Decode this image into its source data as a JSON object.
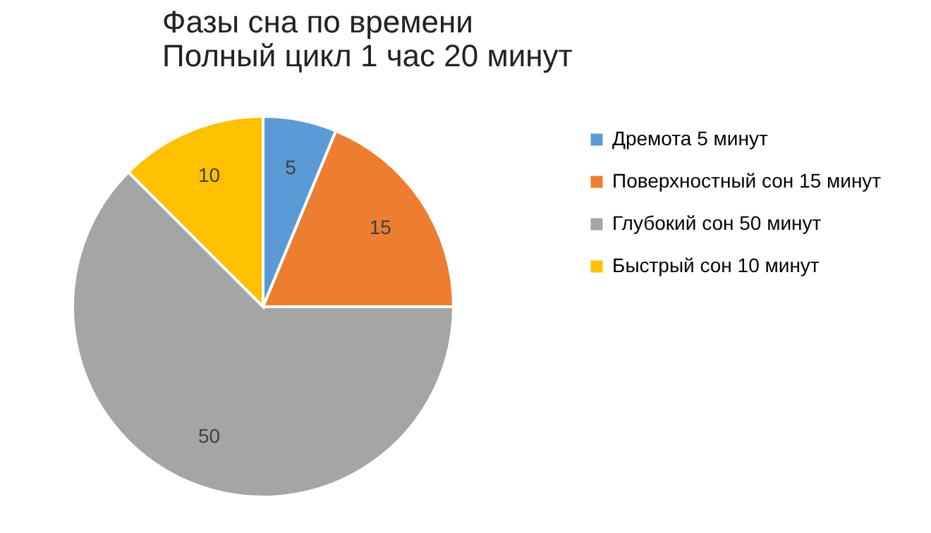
{
  "chart_data": {
    "type": "pie",
    "title": "Фазы сна по времени\nПолный цикл 1 час 20 минут",
    "categories": [
      "Дремота 5 минут",
      "Поверхностный сон 15 минут",
      "Глубокий сон 50 минут",
      "Быстрый сон  10 минут"
    ],
    "values": [
      5,
      15,
      50,
      10
    ],
    "colors": [
      "#5b9bd5",
      "#ed7d31",
      "#a5a5a5",
      "#ffc000"
    ],
    "data_labels": true,
    "legend": "right"
  }
}
